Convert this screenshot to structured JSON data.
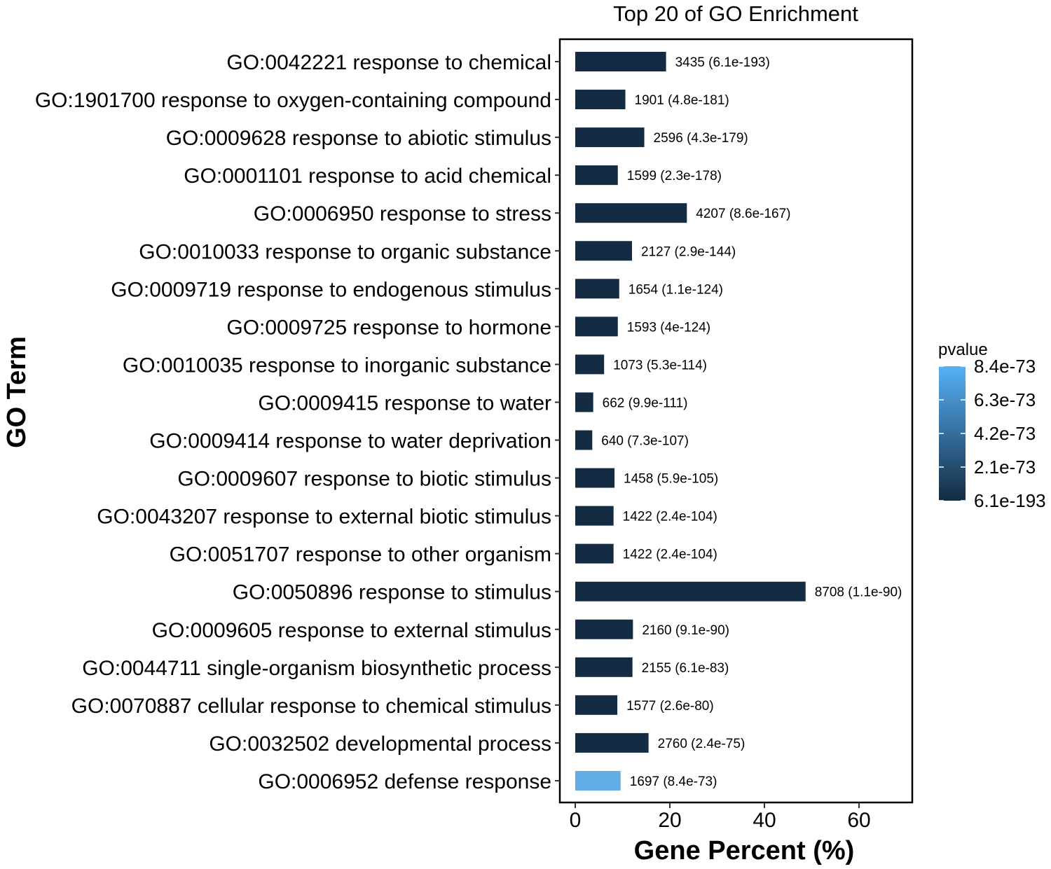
{
  "chart_data": {
    "type": "bar",
    "orientation": "horizontal",
    "title": "Top 20 of GO Enrichment",
    "xlabel": "Gene Percent (%)",
    "ylabel": "GO Term",
    "xlim": [
      0,
      71
    ],
    "xticks": [
      "0",
      "20",
      "40",
      "60"
    ],
    "grid": false,
    "legend": {
      "title": "pvalue",
      "position": "right",
      "ticks": [
        "8.4e-73",
        "6.3e-73",
        "4.2e-73",
        "2.1e-73",
        "6.1e-193"
      ],
      "color_low": "#132b43",
      "color_high": "#56b1f7"
    },
    "categories": [
      "GO:0042221 response to chemical",
      "GO:1901700 response to oxygen-containing compound",
      "GO:0009628 response to abiotic stimulus",
      "GO:0001101 response to acid chemical",
      "GO:0006950 response to stress",
      "GO:0010033 response to organic substance",
      "GO:0009719 response to endogenous stimulus",
      "GO:0009725 response to hormone",
      "GO:0010035 response to inorganic substance",
      "GO:0009415 response to water",
      "GO:0009414 response to water deprivation",
      "GO:0009607 response to biotic stimulus",
      "GO:0043207 response to external biotic stimulus",
      "GO:0051707 response to other organism",
      "GO:0050896 response to stimulus",
      "GO:0009605 response to external stimulus",
      "GO:0044711 single-organism biosynthetic process",
      "GO:0070887 cellular response to chemical stimulus",
      "GO:0032502 developmental process",
      "GO:0006952 defense response"
    ],
    "values": [
      19.2,
      10.6,
      14.6,
      9.0,
      23.6,
      12.0,
      9.3,
      9.0,
      6.1,
      3.8,
      3.6,
      8.3,
      8.1,
      8.1,
      48.7,
      12.2,
      12.1,
      8.9,
      15.5,
      9.6
    ],
    "bar_labels": [
      "3435 (6.1e-193)",
      "1901 (4.8e-181)",
      "2596 (4.3e-179)",
      "1599 (2.3e-178)",
      "4207 (8.6e-167)",
      "2127 (2.9e-144)",
      "1654 (1.1e-124)",
      "1593 (4e-124)",
      "1073 (5.3e-114)",
      "662 (9.9e-111)",
      "640 (7.3e-107)",
      "1458 (5.9e-105)",
      "1422 (2.4e-104)",
      "1422 (2.4e-104)",
      "8708 (1.1e-90)",
      "2160 (9.1e-90)",
      "2155 (6.1e-83)",
      "1577 (2.6e-80)",
      "2760 (2.4e-75)",
      "1697 (8.4e-73)"
    ],
    "bar_colors": [
      "#132b43",
      "#132b43",
      "#132b43",
      "#132b43",
      "#132b43",
      "#132b43",
      "#132b43",
      "#132b43",
      "#132b43",
      "#132b43",
      "#132b43",
      "#132b43",
      "#132b43",
      "#132b43",
      "#132b43",
      "#132b43",
      "#132b43",
      "#132b43",
      "#132b43",
      "#63aee6"
    ]
  }
}
